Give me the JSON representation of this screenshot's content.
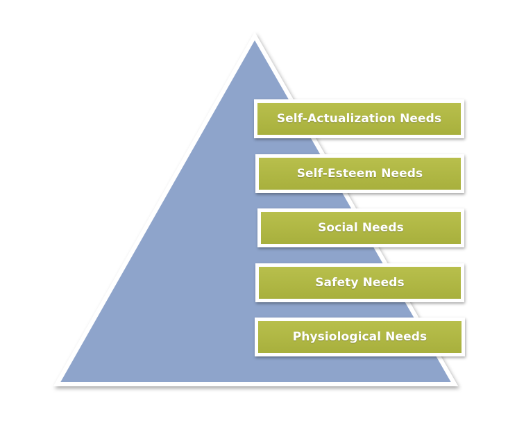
{
  "colors": {
    "pyramid_fill": "#8ea4cb",
    "pyramid_stroke": "#ffffff",
    "box_fill": "#b0b845",
    "box_text": "#ffffff"
  },
  "levels": [
    {
      "label": "Self-Actualization Needs"
    },
    {
      "label": "Self-Esteem Needs"
    },
    {
      "label": "Social Needs"
    },
    {
      "label": "Safety Needs"
    },
    {
      "label": "Physiological Needs"
    }
  ]
}
